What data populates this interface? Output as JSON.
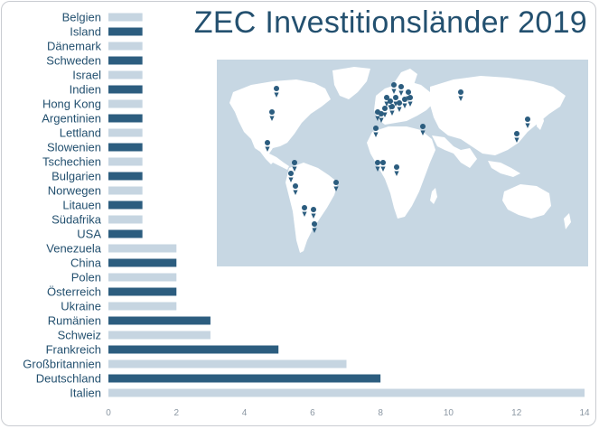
{
  "chart_data": {
    "type": "bar",
    "orientation": "horizontal",
    "title": "ZEC Investitionsländer 2019",
    "xlabel": "",
    "ylabel": "",
    "xlim": [
      0,
      14
    ],
    "xticks": [
      0,
      2,
      4,
      6,
      8,
      10,
      12,
      14
    ],
    "grid": false,
    "colors": {
      "dark": "#2c5d7f",
      "light": "#c6d5e1"
    },
    "categories": [
      "Belgien",
      "Island",
      "Dänemark",
      "Schweden",
      "Israel",
      "Indien",
      "Hong Kong",
      "Argentinien",
      "Lettland",
      "Slowenien",
      "Tschechien",
      "Bulgarien",
      "Norwegen",
      "Litauen",
      "Südafrika",
      "USA",
      "Venezuela",
      "China",
      "Polen",
      "Österreich",
      "Ukraine",
      "Rumänien",
      "Schweiz",
      "Frankreich",
      "Großbritannien",
      "Deutschland",
      "Italien"
    ],
    "values": [
      1,
      1,
      1,
      1,
      1,
      1,
      1,
      1,
      1,
      1,
      1,
      1,
      1,
      1,
      1,
      1,
      2,
      2,
      2,
      2,
      2,
      3,
      3,
      5,
      7,
      8,
      14
    ]
  },
  "map": {
    "land_color": "#ffffff",
    "water_color": "#c7d7e3",
    "marker_color": "#2c5d7f",
    "marker_icon": "map-pin-icon",
    "marker_count": 31
  }
}
